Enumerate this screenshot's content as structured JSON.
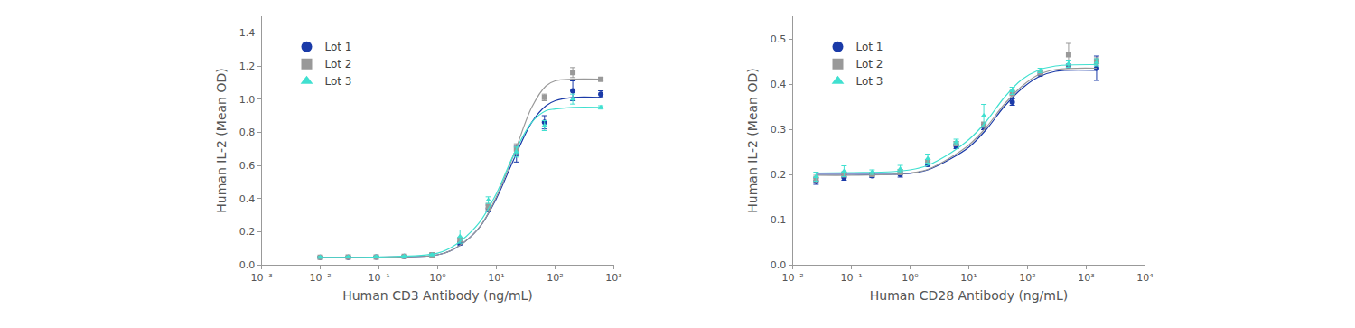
{
  "chart_data": [
    {
      "type": "scatter",
      "x_label": "Human CD3 Antibody (ng/mL)",
      "y_label": "Human IL-2 (Mean OD)",
      "log": "x",
      "legend": "upper left",
      "grid": false,
      "xlim": [
        0.001,
        1000
      ],
      "xticks": [
        {
          "value": 0.001,
          "label": "10⁻³"
        },
        {
          "value": 0.01,
          "label": "10⁻²"
        },
        {
          "value": 0.1,
          "label": "10⁻¹"
        },
        {
          "value": 1,
          "label": "10⁰"
        },
        {
          "value": 10,
          "label": "10¹"
        },
        {
          "value": 100,
          "label": "10²"
        },
        {
          "value": 1000,
          "label": "10³"
        }
      ],
      "ylim": [
        0,
        1.5
      ],
      "yticks": [
        {
          "value": 0,
          "label": "0.0"
        },
        {
          "value": 0.2,
          "label": "0.2"
        },
        {
          "value": 0.4,
          "label": "0.4"
        },
        {
          "value": 0.6,
          "label": "0.6"
        },
        {
          "value": 0.8,
          "label": "0.8"
        },
        {
          "value": 1.0,
          "label": "1.0"
        },
        {
          "value": 1.2,
          "label": "1.2"
        },
        {
          "value": 1.4,
          "label": "1.4"
        }
      ],
      "x": [
        0.01,
        0.03,
        0.09,
        0.27,
        0.8,
        2.4,
        7.3,
        22,
        66,
        200,
        600
      ],
      "fit_x": [
        0.01,
        0.1,
        1,
        2,
        5,
        10,
        20,
        40,
        70,
        100,
        200,
        600
      ],
      "series": [
        {
          "name": "Lot 1",
          "color": "#1a3aa8",
          "marker": "circle",
          "values": [
            0.045,
            0.045,
            0.047,
            0.05,
            0.06,
            0.13,
            0.34,
            0.67,
            0.86,
            1.05,
            1.03
          ],
          "errors": [
            0.005,
            0.005,
            0.005,
            0.005,
            0.005,
            0.01,
            0.02,
            0.05,
            0.04,
            0.06,
            0.02
          ],
          "fit_values": [
            0.045,
            0.046,
            0.06,
            0.1,
            0.22,
            0.4,
            0.64,
            0.86,
            0.96,
            0.99,
            1.01,
            1.01
          ]
        },
        {
          "name": "Lot 2",
          "color": "#999999",
          "marker": "square",
          "values": [
            0.045,
            0.046,
            0.047,
            0.05,
            0.06,
            0.15,
            0.35,
            0.7,
            1.01,
            1.16,
            1.12
          ],
          "errors": [
            0.005,
            0.005,
            0.005,
            0.005,
            0.005,
            0.01,
            0.02,
            0.03,
            0.02,
            0.03,
            0.01
          ],
          "fit_values": [
            0.045,
            0.046,
            0.06,
            0.1,
            0.22,
            0.41,
            0.67,
            0.95,
            1.08,
            1.11,
            1.12,
            1.12
          ]
        },
        {
          "name": "Lot 3",
          "color": "#40e0d0",
          "marker": "triangle-up",
          "values": [
            0.045,
            0.046,
            0.048,
            0.05,
            0.06,
            0.17,
            0.39,
            0.68,
            0.84,
            1.0,
            0.95
          ],
          "errors": [
            0.005,
            0.005,
            0.005,
            0.005,
            0.005,
            0.04,
            0.02,
            0.03,
            0.03,
            0.03,
            0.01
          ],
          "fit_values": [
            0.045,
            0.047,
            0.07,
            0.12,
            0.25,
            0.43,
            0.67,
            0.86,
            0.93,
            0.94,
            0.95,
            0.95
          ]
        }
      ]
    },
    {
      "type": "scatter",
      "x_label": "Human CD28 Antibody (ng/mL)",
      "y_label": "Human IL-2 (Mean OD)",
      "log": "x",
      "legend": "upper left",
      "grid": false,
      "xlim": [
        0.01,
        10000
      ],
      "xticks": [
        {
          "value": 0.01,
          "label": "10⁻²"
        },
        {
          "value": 0.1,
          "label": "10⁻¹"
        },
        {
          "value": 1,
          "label": "10⁰"
        },
        {
          "value": 10,
          "label": "10¹"
        },
        {
          "value": 100,
          "label": "10²"
        },
        {
          "value": 1000,
          "label": "10³"
        },
        {
          "value": 10000,
          "label": "10⁴"
        }
      ],
      "ylim": [
        0,
        0.55
      ],
      "yticks": [
        {
          "value": 0,
          "label": "0.0"
        },
        {
          "value": 0.1,
          "label": "0.1"
        },
        {
          "value": 0.2,
          "label": "0.2"
        },
        {
          "value": 0.3,
          "label": "0.3"
        },
        {
          "value": 0.4,
          "label": "0.4"
        },
        {
          "value": 0.5,
          "label": "0.5"
        }
      ],
      "x": [
        0.025,
        0.075,
        0.225,
        0.68,
        2.0,
        6.1,
        18,
        55,
        165,
        500,
        1500
      ],
      "fit_x": [
        0.025,
        0.1,
        0.5,
        1,
        2,
        5,
        10,
        20,
        40,
        80,
        150,
        300,
        1500
      ],
      "series": [
        {
          "name": "Lot 1",
          "color": "#1a3aa8",
          "marker": "circle",
          "values": [
            0.185,
            0.193,
            0.197,
            0.2,
            0.222,
            0.262,
            0.305,
            0.36,
            0.422,
            0.44,
            0.435
          ],
          "errors": [
            0.007,
            0.006,
            0.004,
            0.006,
            0.004,
            0.005,
            0.006,
            0.007,
            0.004,
            0.004,
            0.027
          ],
          "fit_values": [
            0.2,
            0.2,
            0.2,
            0.202,
            0.21,
            0.235,
            0.26,
            0.3,
            0.35,
            0.39,
            0.415,
            0.428,
            0.43
          ]
        },
        {
          "name": "Lot 2",
          "color": "#999999",
          "marker": "square",
          "values": [
            0.19,
            0.2,
            0.2,
            0.205,
            0.228,
            0.268,
            0.31,
            0.38,
            0.425,
            0.465,
            0.45
          ],
          "errors": [
            0.008,
            0.006,
            0.004,
            0.006,
            0.005,
            0.005,
            0.006,
            0.006,
            0.004,
            0.025,
            0.008
          ],
          "fit_values": [
            0.198,
            0.198,
            0.2,
            0.203,
            0.211,
            0.238,
            0.265,
            0.305,
            0.355,
            0.395,
            0.42,
            0.432,
            0.435
          ]
        },
        {
          "name": "Lot 3",
          "color": "#40e0d0",
          "marker": "triangle-up",
          "values": [
            0.195,
            0.207,
            0.205,
            0.212,
            0.235,
            0.272,
            0.33,
            0.385,
            0.43,
            0.445,
            0.448
          ],
          "errors": [
            0.01,
            0.012,
            0.005,
            0.008,
            0.01,
            0.006,
            0.025,
            0.008,
            0.005,
            0.008,
            0.008
          ],
          "fit_values": [
            0.203,
            0.204,
            0.206,
            0.21,
            0.22,
            0.248,
            0.277,
            0.318,
            0.37,
            0.41,
            0.43,
            0.44,
            0.443
          ]
        }
      ]
    }
  ]
}
